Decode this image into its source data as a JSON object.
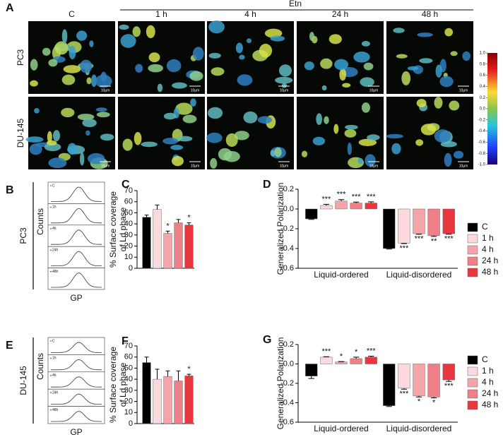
{
  "figure_a": {
    "panel": "A",
    "group_label": "Etn",
    "columns": [
      "C",
      "1 h",
      "4 h",
      "24 h",
      "48 h"
    ],
    "rows": [
      "PC3",
      "DU-145"
    ],
    "scale_bar": "10µm",
    "colorbar": {
      "ticks": [
        {
          "value": 1,
          "label": "1.0"
        },
        0.8,
        0.6,
        0.4,
        0.2,
        {
          "value": 0,
          "label": "0.0"
        },
        -0.2,
        -0.4,
        -0.6,
        -0.8,
        {
          "value": -1,
          "label": "-1.0"
        }
      ]
    }
  },
  "figure_b": {
    "panel": "B",
    "row": "PC3",
    "ylabel": "Counts",
    "xlabel": "GP",
    "insets": [
      "C",
      "1h",
      "4h",
      "24h",
      "48h"
    ]
  },
  "figure_e": {
    "panel": "E",
    "row": "DU-145",
    "ylabel": "Counts",
    "xlabel": "GP",
    "insets": [
      "C",
      "1h",
      "4h",
      "24h",
      "48h"
    ]
  },
  "chart_data": [
    {
      "type": "bar",
      "panel": "C",
      "ylabel": [
        "% Surface coverage",
        "of Ld phase"
      ],
      "values": [
        46,
        53,
        31.5,
        41,
        39
      ],
      "errors": [
        2,
        4,
        2,
        3,
        2
      ],
      "colors": [
        "#000000",
        "#fcd9dc",
        "#f4a5aa",
        "#ef7f86",
        "#e8363f"
      ],
      "significance": [
        null,
        null,
        "*",
        null,
        "*"
      ],
      "ylim": [
        0,
        70
      ],
      "yticks": [
        0,
        10,
        20,
        30,
        40,
        50,
        60,
        70
      ]
    },
    {
      "type": "grouped-bar",
      "panel": "D",
      "ylabel": "Generalized Polarization",
      "categories": [
        "Liquid-ordered",
        "Liquid-disordered"
      ],
      "legend": "right",
      "ylim": [
        -0.6,
        0.2
      ],
      "yticks": [
        -0.6,
        -0.4,
        -0.2,
        {
          "value": 0,
          "label": "0.0"
        },
        0.2
      ],
      "series": [
        {
          "name": "C",
          "color": "#000000",
          "values": [
            -0.1,
            -0.4
          ],
          "errors": [
            0.005,
            0.005
          ],
          "significance": [
            null,
            null
          ]
        },
        {
          "name": "1 h",
          "color": "#fcd9dc",
          "values": [
            0.035,
            -0.345
          ],
          "errors": [
            0.012,
            0.005
          ],
          "significance": [
            "***",
            "***"
          ]
        },
        {
          "name": "4 h",
          "color": "#f4a5aa",
          "values": [
            0.08,
            -0.25
          ],
          "errors": [
            0.015,
            0.006
          ],
          "significance": [
            "***",
            "***"
          ]
        },
        {
          "name": "24 h",
          "color": "#ef7f86",
          "values": [
            0.06,
            -0.27
          ],
          "errors": [
            0.01,
            0.008
          ],
          "significance": [
            "***",
            "**"
          ]
        },
        {
          "name": "48 h",
          "color": "#e8363f",
          "values": [
            0.06,
            -0.25
          ],
          "errors": [
            0.012,
            0.005
          ],
          "significance": [
            "***",
            "***"
          ]
        }
      ]
    },
    {
      "type": "bar",
      "panel": "F",
      "ylabel": [
        "% Surface coverage",
        "of Ld phase"
      ],
      "values": [
        55,
        40,
        42.5,
        38.5,
        43
      ],
      "errors": [
        5,
        9,
        5,
        9,
        1.5
      ],
      "colors": [
        "#000000",
        "#fcd9dc",
        "#f4a5aa",
        "#ef7f86",
        "#e8363f"
      ],
      "significance": [
        null,
        null,
        null,
        null,
        "*"
      ],
      "ylim": [
        0,
        70
      ],
      "yticks": [
        0,
        10,
        20,
        30,
        40,
        50,
        60,
        70
      ]
    },
    {
      "type": "grouped-bar",
      "panel": "G",
      "ylabel": "Generalized Polarization",
      "categories": [
        "Liquid-ordered",
        "Liquid-disordered"
      ],
      "legend": "right",
      "ylim": [
        -0.6,
        0.2
      ],
      "yticks": [
        -0.6,
        -0.4,
        -0.2,
        {
          "value": 0,
          "label": "0.0"
        },
        0.2
      ],
      "series": [
        {
          "name": "C",
          "color": "#000000",
          "values": [
            -0.125,
            -0.43
          ],
          "errors": [
            0.025,
            0.008
          ],
          "significance": [
            null,
            null
          ]
        },
        {
          "name": "1 h",
          "color": "#fcd9dc",
          "values": [
            0.07,
            -0.25
          ],
          "errors": [
            0.005,
            0.01
          ],
          "significance": [
            "***",
            "***"
          ]
        },
        {
          "name": "4 h",
          "color": "#f4a5aa",
          "values": [
            0.02,
            -0.33
          ],
          "errors": [
            0.005,
            0.01
          ],
          "significance": [
            "*",
            "*"
          ]
        },
        {
          "name": "24 h",
          "color": "#ef7f86",
          "values": [
            0.055,
            -0.34
          ],
          "errors": [
            0.015,
            0.01
          ],
          "significance": [
            "*",
            "*"
          ]
        },
        {
          "name": "48 h",
          "color": "#e8363f",
          "values": [
            0.07,
            -0.165
          ],
          "errors": [
            0.01,
            0.015
          ],
          "significance": [
            "***",
            "***"
          ]
        }
      ]
    }
  ]
}
